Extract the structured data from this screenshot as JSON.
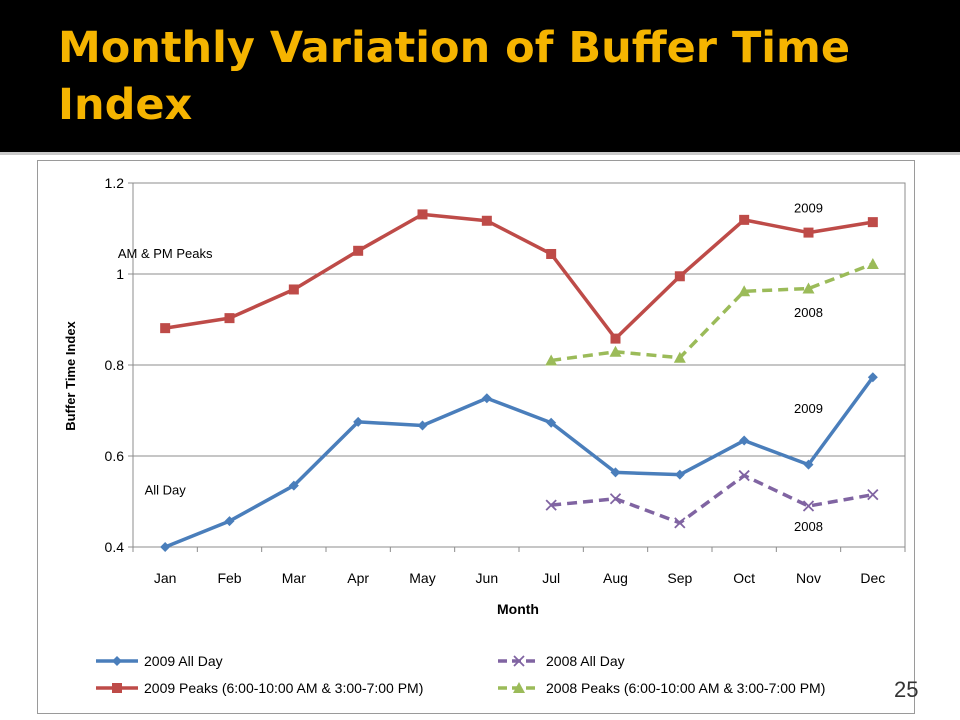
{
  "slide": {
    "title": "Monthly Variation of Buffer Time Index",
    "page_number": "25"
  },
  "chart_data": {
    "type": "line",
    "title": "",
    "xlabel": "Month",
    "ylabel": "Buffer Time Index",
    "categories": [
      "Jan",
      "Feb",
      "Mar",
      "Apr",
      "May",
      "Jun",
      "Jul",
      "Aug",
      "Sep",
      "Oct",
      "Nov",
      "Dec"
    ],
    "ylim": [
      0.4,
      1.2
    ],
    "yticks": [
      "0.4",
      "0.6",
      "0.8",
      "1",
      "1.2"
    ],
    "grid": true,
    "legend_position": "bottom",
    "series": [
      {
        "name": "2009 All Day",
        "color": "#4a7ebb",
        "marker": "diamond",
        "dash": "solid",
        "values": [
          0.4,
          0.457,
          0.535,
          0.675,
          0.667,
          0.727,
          0.673,
          0.564,
          0.559,
          0.634,
          0.581,
          0.773
        ]
      },
      {
        "name": "2008 All Day",
        "color": "#8064a2",
        "marker": "x",
        "dash": "dashed",
        "values": [
          null,
          null,
          null,
          null,
          null,
          null,
          0.492,
          0.506,
          0.453,
          0.557,
          0.49,
          0.515
        ]
      },
      {
        "name": "2009 Peaks (6:00-10:00 AM & 3:00-7:00 PM)",
        "color": "#be4b48",
        "marker": "square",
        "dash": "solid",
        "values": [
          0.881,
          0.903,
          0.966,
          1.051,
          1.131,
          1.117,
          1.044,
          0.858,
          0.995,
          1.119,
          1.091,
          1.114
        ]
      },
      {
        "name": "2008 Peaks (6:00-10:00 AM & 3:00-7:00 PM)",
        "color": "#9bbb59",
        "marker": "triangle",
        "dash": "dashed",
        "values": [
          null,
          null,
          null,
          null,
          null,
          null,
          0.81,
          0.829,
          0.816,
          0.962,
          0.968,
          1.022
        ]
      }
    ],
    "annotations": [
      {
        "text": "AM & PM Peaks",
        "x": "Jan",
        "y": 1.035
      },
      {
        "text": "2009",
        "x": "Nov",
        "y": 1.135
      },
      {
        "text": "2008",
        "x": "Nov",
        "y": 0.905
      },
      {
        "text": "2009",
        "x": "Nov",
        "y": 0.695
      },
      {
        "text": "All Day",
        "x": "Jan",
        "y": 0.515
      },
      {
        "text": "2008",
        "x": "Nov",
        "y": 0.435
      }
    ]
  }
}
